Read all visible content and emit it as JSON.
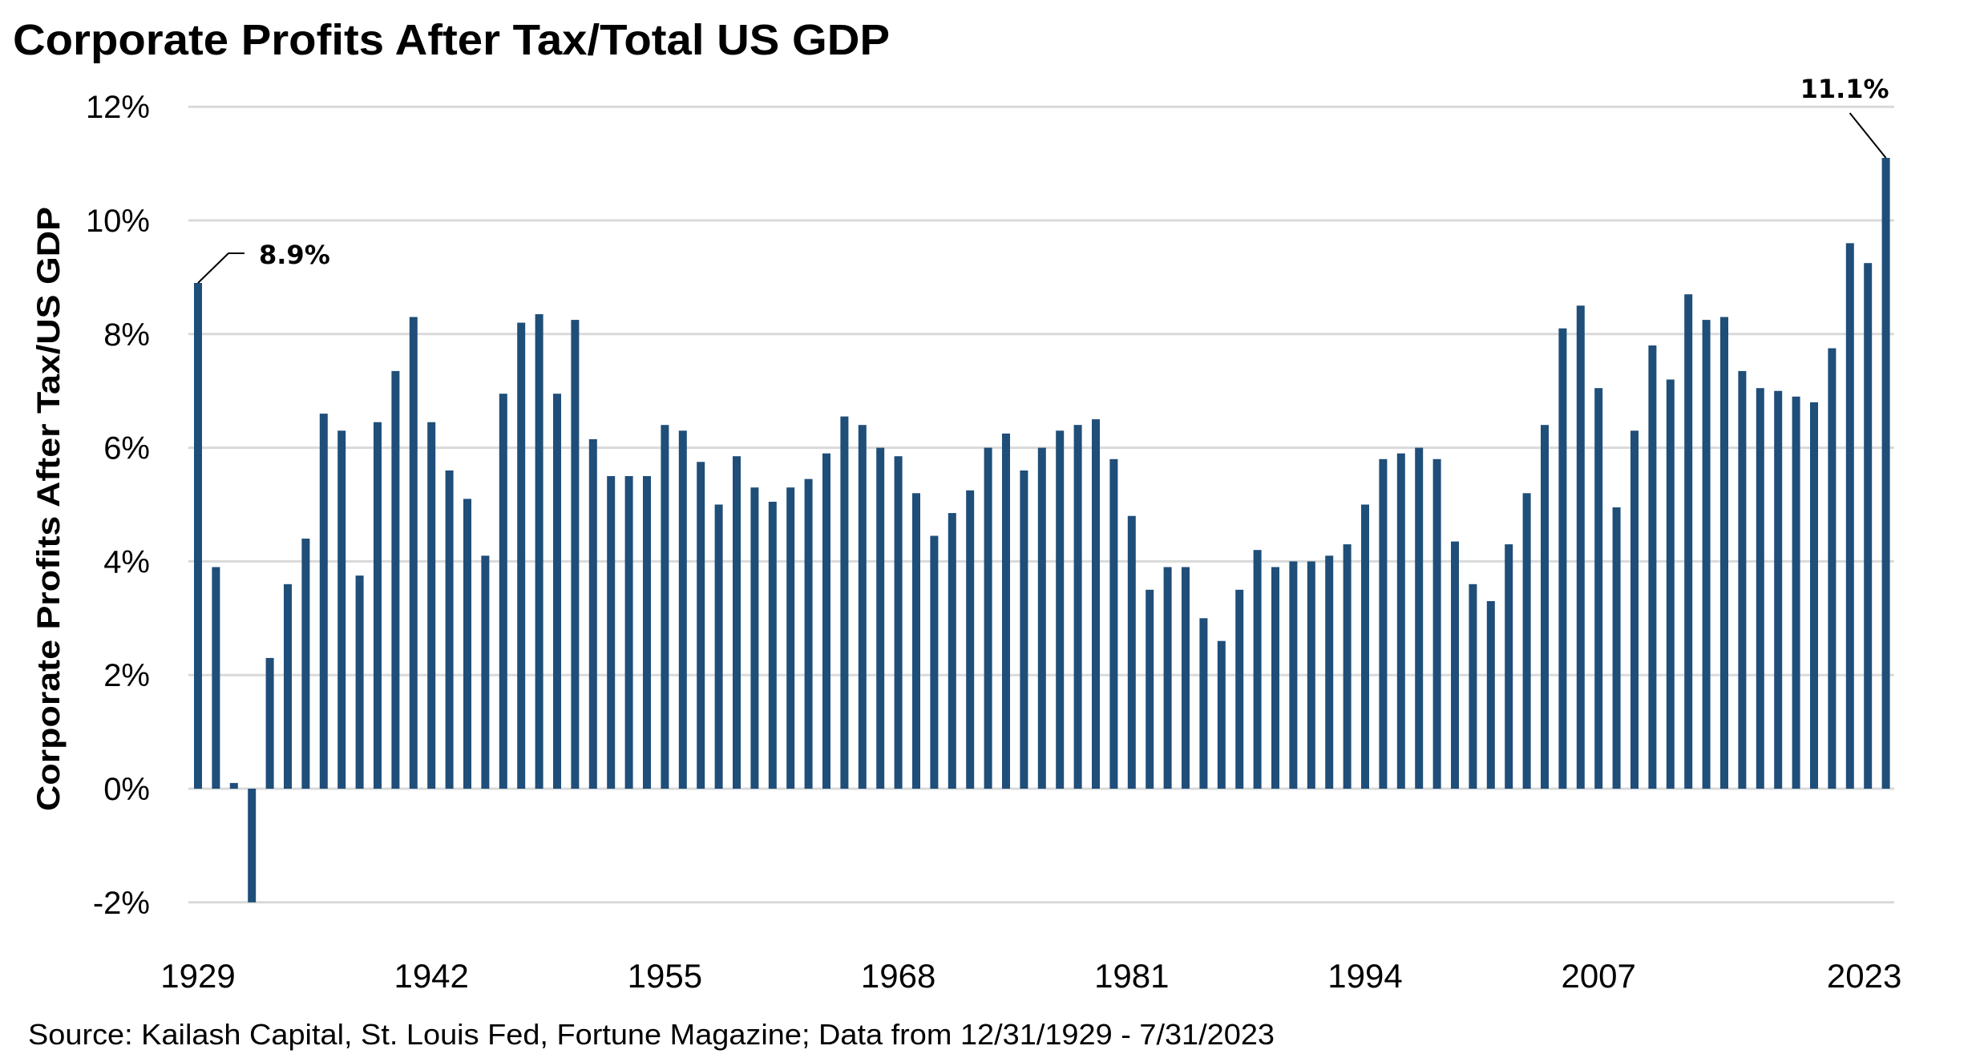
{
  "chart_data": {
    "type": "bar",
    "title": "Corporate Profits After Tax/Total US GDP",
    "xlabel": "",
    "ylabel": "Corporate Profits After Tax/US GDP",
    "source": "Source: Kailash Capital, St. Louis Fed, Fortune Magazine; Data from 12/31/1929 - 7/31/2023",
    "ylim": [
      -2,
      12
    ],
    "yticks": [
      -2,
      0,
      2,
      4,
      6,
      8,
      10,
      12
    ],
    "ytick_labels": [
      "-2%",
      "0%",
      "2%",
      "4%",
      "6%",
      "8%",
      "10%",
      "12%"
    ],
    "xtick_labels": [
      "1929",
      "1942",
      "1955",
      "1968",
      "1981",
      "1994",
      "2007",
      "2023"
    ],
    "grid": true,
    "legend": "none",
    "bar_color": "#1F4E79",
    "annotations": [
      {
        "year": 1929,
        "text": "8.9%"
      },
      {
        "year": 2023,
        "text": "11.1%"
      }
    ],
    "series": [
      {
        "name": "Corporate Profits After Tax/US GDP (%)",
        "x": [
          1929,
          1930,
          1931,
          1932,
          1933,
          1934,
          1935,
          1936,
          1937,
          1938,
          1939,
          1940,
          1941,
          1942,
          1943,
          1944,
          1945,
          1946,
          1947,
          1948,
          1949,
          1950,
          1951,
          1952,
          1953,
          1954,
          1955,
          1956,
          1957,
          1958,
          1959,
          1960,
          1961,
          1962,
          1963,
          1964,
          1965,
          1966,
          1967,
          1968,
          1969,
          1970,
          1971,
          1972,
          1973,
          1974,
          1975,
          1976,
          1977,
          1978,
          1979,
          1980,
          1981,
          1982,
          1983,
          1984,
          1985,
          1986,
          1987,
          1988,
          1989,
          1990,
          1991,
          1992,
          1993,
          1994,
          1995,
          1996,
          1997,
          1998,
          1999,
          2000,
          2001,
          2002,
          2003,
          2004,
          2005,
          2006,
          2007,
          2008,
          2009,
          2010,
          2011,
          2012,
          2013,
          2014,
          2015,
          2016,
          2017,
          2018,
          2019,
          2020,
          2021,
          2022,
          2023
        ],
        "values": [
          8.9,
          3.9,
          0.1,
          -2.0,
          2.3,
          3.6,
          4.4,
          6.6,
          6.3,
          3.75,
          6.45,
          7.35,
          8.3,
          6.45,
          5.6,
          5.1,
          4.1,
          6.95,
          8.2,
          8.35,
          6.95,
          8.25,
          6.15,
          5.5,
          5.5,
          5.5,
          6.4,
          6.3,
          5.75,
          5.0,
          5.85,
          5.3,
          5.05,
          5.3,
          5.45,
          5.9,
          6.55,
          6.4,
          6.0,
          5.85,
          5.2,
          4.45,
          4.85,
          5.25,
          6.0,
          6.25,
          5.6,
          6.0,
          6.3,
          6.4,
          6.5,
          5.8,
          4.8,
          3.5,
          3.9,
          3.9,
          3.0,
          2.6,
          3.5,
          4.2,
          3.9,
          4.0,
          4.0,
          4.1,
          4.3,
          5.0,
          5.8,
          5.9,
          6.0,
          5.8,
          4.35,
          3.6,
          3.3,
          4.3,
          5.2,
          6.4,
          8.1,
          8.5,
          7.05,
          4.95,
          6.3,
          7.8,
          7.2,
          8.7,
          8.25,
          8.3,
          7.35,
          7.05,
          7.0,
          6.9,
          6.8,
          7.75,
          9.6,
          9.25,
          11.1
        ]
      }
    ]
  }
}
